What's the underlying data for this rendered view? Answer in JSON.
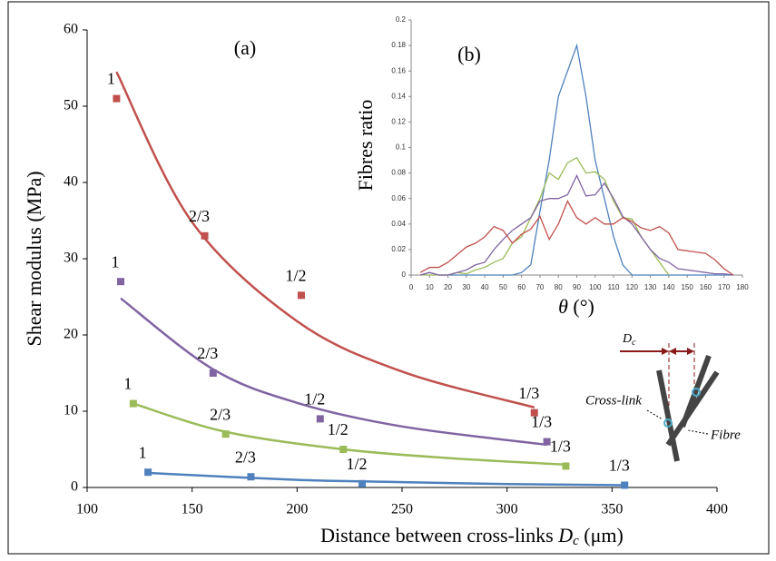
{
  "chart_data": [
    {
      "type": "scatter",
      "annotation": "(a)",
      "x_label": [
        "Distance between cross-links ",
        "D",
        "c",
        " (μm)"
      ],
      "y_label": "Shear modulus (MPa)",
      "xlim": [
        100,
        400
      ],
      "xticks": [
        100,
        150,
        200,
        250,
        300,
        350,
        400
      ],
      "ylim": [
        0,
        60
      ],
      "yticks": [
        0,
        10,
        20,
        30,
        40,
        50,
        60
      ],
      "series": [
        {
          "color": "#c0504d",
          "x": [
            114,
            156,
            202,
            313
          ],
          "values": [
            51,
            33,
            25.2,
            9.8
          ],
          "point_labels": [
            "1",
            "2/3",
            "1/2",
            "1/3"
          ],
          "fit_x": [
            114,
            150,
            200,
            250,
            313
          ],
          "fit_values": [
            54.5,
            34.8,
            21.8,
            15.2,
            10.5
          ]
        },
        {
          "color": "#8064a2",
          "x": [
            116,
            160,
            211,
            319
          ],
          "values": [
            27,
            15,
            9,
            6
          ],
          "point_labels": [
            "1",
            "2/3",
            "1/2",
            "1/3"
          ],
          "fit_x": [
            116,
            160,
            200,
            250,
            319
          ],
          "fit_values": [
            24.8,
            15.5,
            11.1,
            8.0,
            5.6
          ]
        },
        {
          "color": "#9bbb59",
          "x": [
            122,
            166,
            222,
            328
          ],
          "values": [
            11,
            7,
            5,
            2.8
          ],
          "point_labels": [
            "1",
            "2/3",
            "1/2",
            "1/3"
          ],
          "fit_x": [
            122,
            166,
            222,
            275,
            328
          ],
          "fit_values": [
            11,
            7.3,
            5.0,
            3.8,
            3.0
          ]
        },
        {
          "color": "#4f81bd",
          "x": [
            129,
            178,
            231,
            356
          ],
          "values": [
            2,
            1.4,
            0.5,
            0.3
          ],
          "point_labels": [
            "1",
            "2/3",
            "1/2",
            "1/3"
          ],
          "fit_x": [
            129,
            200,
            250,
            300,
            356
          ],
          "fit_values": [
            1.9,
            1.0,
            0.7,
            0.45,
            0.3
          ]
        }
      ]
    },
    {
      "type": "line",
      "annotation": "(b)",
      "x_label": [
        "θ",
        " (°)"
      ],
      "y_label": "Fibres ratio",
      "xlim": [
        0,
        180
      ],
      "xticks": [
        0,
        10,
        20,
        30,
        40,
        50,
        60,
        70,
        80,
        90,
        100,
        110,
        120,
        130,
        140,
        150,
        160,
        170,
        180
      ],
      "ylim": [
        0,
        0.2
      ],
      "yticks": [
        0,
        0.02,
        0.04,
        0.06,
        0.08,
        0.1,
        0.12,
        0.14,
        0.16,
        0.18,
        0.2
      ],
      "x": [
        5,
        10,
        15,
        20,
        25,
        30,
        35,
        40,
        45,
        50,
        55,
        60,
        65,
        70,
        75,
        80,
        85,
        90,
        95,
        100,
        105,
        110,
        115,
        120,
        125,
        130,
        135,
        140,
        145,
        150,
        155,
        160,
        165,
        170,
        175
      ],
      "series": [
        {
          "color": "#4f81bd",
          "values": [
            0,
            0.002,
            0,
            0,
            0,
            0,
            0,
            0,
            0,
            0,
            0,
            0.002,
            0.008,
            0.05,
            0.09,
            0.14,
            0.16,
            0.18,
            0.14,
            0.09,
            0.06,
            0.03,
            0.008,
            0,
            0,
            0,
            0,
            0,
            0,
            0,
            0,
            0,
            0,
            0,
            0
          ]
        },
        {
          "color": "#9bbb59",
          "values": [
            0,
            0,
            0,
            0,
            0.002,
            0.001,
            0.004,
            0.006,
            0.01,
            0.013,
            0.025,
            0.03,
            0.045,
            0.06,
            0.08,
            0.075,
            0.088,
            0.092,
            0.08,
            0.081,
            0.075,
            0.058,
            0.045,
            0.044,
            0.03,
            0.02,
            0.01,
            0,
            null,
            null,
            null,
            null,
            null,
            null,
            null
          ]
        },
        {
          "color": "#8064a2",
          "values": [
            0,
            0.002,
            0,
            0,
            0.002,
            0.004,
            0.008,
            0.01,
            0.02,
            0.028,
            0.035,
            0.04,
            0.045,
            0.058,
            0.06,
            0.06,
            0.063,
            0.078,
            0.062,
            0.063,
            0.072,
            0.06,
            0.046,
            0.04,
            0.03,
            0.02,
            0.013,
            0.01,
            0.005,
            0.004,
            0.003,
            0.002,
            0.001,
            0.001,
            0
          ]
        },
        {
          "color": "#c0504d",
          "values": [
            0.002,
            0.006,
            0.006,
            0.01,
            0.016,
            0.022,
            0.025,
            0.03,
            0.038,
            0.035,
            0.025,
            0.032,
            0.036,
            0.046,
            0.028,
            0.04,
            0.058,
            0.045,
            0.04,
            0.045,
            0.04,
            0.04,
            0.045,
            0.042,
            0.037,
            0.035,
            0.038,
            0.033,
            0.02,
            0.019,
            0.018,
            0.017,
            0.012,
            0.005,
            0
          ]
        }
      ]
    }
  ],
  "diagram": {
    "dimension": [
      "D",
      "c"
    ],
    "labels": [
      "Cross-link",
      "Fibre"
    ]
  }
}
